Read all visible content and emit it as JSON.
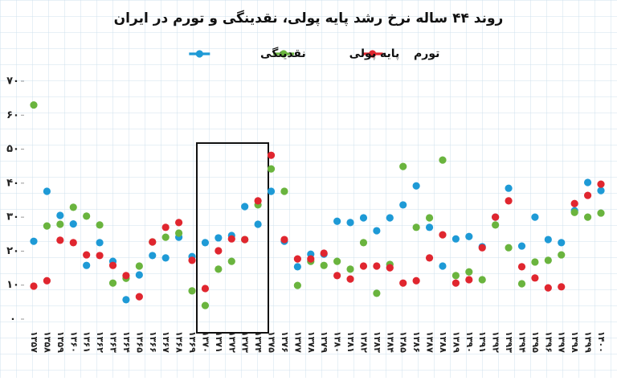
{
  "chart_data": {
    "type": "line",
    "title": "روند ۴۴ ساله نرخ رشد پایه پولی، نقدینگی و تورم در ایران",
    "categories": [
      "۱۳۵۷",
      "۱۳۵۸",
      "۱۳۵۹",
      "۱۳۶۰",
      "۱۳۶۱",
      "۱۳۶۲",
      "۱۳۶۳",
      "۱۳۶۴",
      "۱۳۶۵",
      "۱۳۶۶",
      "۱۳۶۷",
      "۱۳۶۸",
      "۱۳۶۹",
      "۱۳۷۰",
      "۱۳۷۱",
      "۱۳۷۲",
      "۱۳۷۳",
      "۱۳۷۴",
      "۱۳۷۵",
      "۱۳۷۶",
      "۱۳۷۷",
      "۱۳۷۸",
      "۱۳۷۹",
      "۱۳۸۰",
      "۱۳۸۱",
      "۱۳۸۲",
      "۱۳۸۳",
      "۱۳۸۴",
      "۱۳۸۵",
      "۱۳۸۶",
      "۱۳۸۷",
      "۱۳۸۸",
      "۱۳۸۹",
      "۱۳۹۰",
      "۱۳۹۱",
      "۱۳۹۲",
      "۱۳۹۳",
      "۱۳۹۴",
      "۱۳۹۵",
      "۱۳۹۶",
      "۱۳۹۷",
      "۱۳۹۸",
      "۱۳۹۹",
      "۱۴۰۰"
    ],
    "series": [
      {
        "name": "نقدینگی",
        "color": "#1e9ad6",
        "values": [
          22.9,
          37.6,
          30.5,
          28,
          15.8,
          22.5,
          17,
          5.7,
          13,
          18.7,
          18,
          24.1,
          18.4,
          22.5,
          23.9,
          24.6,
          33.1,
          27.9,
          37.6,
          22.9,
          15.4,
          19.1,
          19.1,
          28.8,
          28.4,
          29.8,
          26,
          29.8,
          33.6,
          39.2,
          27,
          15.6,
          23.6,
          24.3,
          21.3,
          30,
          38.5,
          21.5,
          30,
          23.4,
          22.5,
          31.9,
          40.2,
          37.8
        ]
      },
      {
        "name": "پایه پولی",
        "color": "#6ab43e",
        "values": [
          63,
          27.4,
          27.9,
          32.9,
          30.3,
          27.7,
          10.6,
          12,
          15.6,
          22.7,
          24.1,
          25.3,
          8.3,
          4,
          14.7,
          17,
          23.4,
          33.6,
          44.2,
          37.6,
          9.9,
          17,
          15.8,
          17,
          14.7,
          22.5,
          7.6,
          16.1,
          44.9,
          27,
          29.8,
          46.8,
          12.8,
          13.9,
          11.6,
          27.7,
          21,
          10.4,
          16.8,
          17.3,
          18.9,
          31.4,
          30,
          31.2
        ]
      },
      {
        "name": "تورم",
        "color": "#e0262f",
        "values": [
          9.7,
          11.3,
          23.2,
          22.5,
          18.9,
          18.7,
          15.8,
          12.8,
          6.6,
          22.7,
          27,
          28.4,
          17.3,
          9,
          20.1,
          23.6,
          23.4,
          34.8,
          48.2,
          23.4,
          17.7,
          17.7,
          19.4,
          12.8,
          11.8,
          15.6,
          15.6,
          15.1,
          10.6,
          11.3,
          18,
          24.8,
          10.6,
          11.6,
          21,
          30,
          34.8,
          15.4,
          12.1,
          9.2,
          9.5,
          34,
          36.4,
          39.7
        ]
      }
    ],
    "ylim": [
      0,
      70
    ],
    "yticks": [
      {
        "value": 0,
        "label": "٠"
      },
      {
        "value": 10,
        "label": "١٠"
      },
      {
        "value": 20,
        "label": "٢٠"
      },
      {
        "value": 30,
        "label": "٣٠"
      },
      {
        "value": 40,
        "label": "۴٠"
      },
      {
        "value": 50,
        "label": "۵٠"
      },
      {
        "value": 60,
        "label": "۶٠"
      },
      {
        "value": 70,
        "label": "٧٠"
      }
    ]
  }
}
